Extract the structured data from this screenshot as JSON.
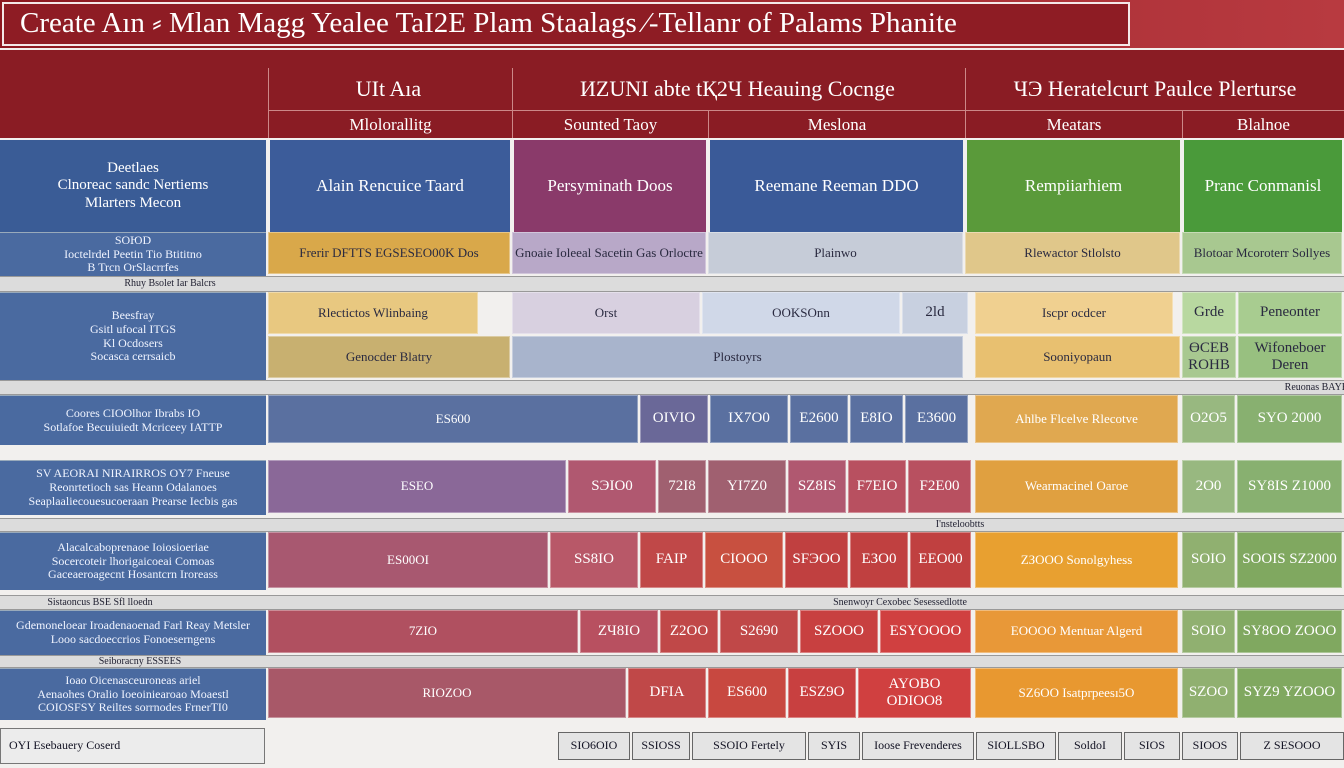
{
  "title": "Create Aın ⸗ Mlan Magg Yealee TaI2E Plam Staalags ⁄-Tellanr of Palams Phanite",
  "header": {
    "group_row": [
      "UIt Aıa",
      "ИZUNI abte tҚ2Ч Heauing Cocnge",
      "ЧЭ Heratelcuгt Paulce Plerturse"
    ],
    "sub_row": [
      "Mlolorallitg",
      "Sounted Taoy",
      "Meslona",
      "Meatars",
      "Blalnoe"
    ]
  },
  "categories": {
    "left": [
      "Deetlaes",
      "Clnoreac sandc Nertiems",
      "Mlarters Mecon"
    ],
    "columns": [
      "Alain Rencuice Taard",
      "Persyminath Doos",
      "Reemane Reeman DDO",
      "Rempiiarhiem",
      "Pranc Conmanisl"
    ]
  },
  "rows": [
    {
      "label": [
        "ЅOЮD",
        "Ioctelrdel Peetin Tio Btititno",
        "B Trcn OrSlacrrfes"
      ],
      "cells": [
        "Frerir DFTTS EGSESEO00K Dos",
        "Gnoaie Ioleeal Sacetin Gas Orloctre",
        "Plainwo",
        "Rlewactor Stlolsto",
        "Blotoar Mcoroterr Sollyes"
      ]
    },
    {
      "label": [
        "Beesfray",
        "Gsitl ufocal ITGS",
        "Kl Ocdosers",
        "Socasca cerrsaicb"
      ],
      "cells": [
        "Rlectictos Wlinbaing",
        "Orst",
        "OOKSOnn",
        "2ld",
        "Iscpr ocdcer",
        "Grde",
        "Peneonter",
        "Genocder Blatry",
        "Plostoyrs",
        "Sooniyopaun",
        "ӨCEB ROHB",
        "Wifoneboer Deren"
      ]
    },
    {
      "label": [
        "Coores CIOOlhor Ibrabs IO",
        "Sotlafoe Becuiuiedt Mcriceey IATTP"
      ],
      "cells": [
        "ES600",
        "OIVIO",
        "IX7O0",
        "E2600",
        "E8IO",
        "E3600",
        "Ahlbe Flcelve Rlecotve",
        "O2O5",
        "SYO 2000"
      ]
    },
    {
      "label": [
        "SV AEORAI NIRAIRROS OY7 Fneuse",
        "Reonrtetioch sas Heann Odalanoes",
        "Seaplaaliecouesucoeraan Prearse Iecbis gas"
      ],
      "cells": [
        "ESEO",
        "SЭIO0",
        "72I8",
        "YI7Z0",
        "SZ8IS",
        "F7EIO",
        "F2E00",
        "Wearmacinel Oaroe",
        "2O0",
        "SY8IS Z1000"
      ]
    },
    {
      "label": [
        "Alacalcaboprenaoe Ioiosioeriae",
        "Socercoteir lhorigaicoeai Comoas",
        "Gaceaeroagecnt Hosantcrn Iroreass"
      ],
      "cells": [
        "ES00OI",
        "SS8IO",
        "FAIP",
        "CIOOO",
        "SFЭOO",
        "EЗO0",
        "EEO00",
        "ZЗOOO Sonolgyhess",
        "SOIO",
        "SOOIS SZ2000"
      ]
    },
    {
      "label": [
        "Gdemoneloear Iroadenaoenad Farl Reay Metsler",
        "Looo sacdoeccrios Fonoeserngens"
      ],
      "cells": [
        "7ZIO",
        "ZЧ8IO",
        "Z2OO",
        "S2690",
        "SZOOO",
        "ESYOOOO",
        "ЕOOOO Mentuar Algerd",
        "SOIO",
        "SY8OO ZOOO"
      ]
    },
    {
      "label": [
        "Ioao Oicenasceuroneas ariel",
        "Aenaohes Oralio Ioeoiniearoao Moaestl",
        "COIOSFSY Reiltes sorrnodes FrnerTI0"
      ],
      "cells": [
        "RIOZOO",
        "DFIA",
        "ES600",
        "ESZ9O",
        "AYOBO ODIOO8",
        "SZ6OO Isatprpeesı5O",
        "SZOO",
        "SYZ9 YZOOO"
      ]
    }
  ],
  "separators": [
    [
      "Rhuy Bsolet Iar Balcrs"
    ],
    [
      "Reuonas BAYBE SEЭ"
    ],
    [
      "I'nsteloobtts"
    ],
    [
      "Sistaoncus BSE Sfl lloedn",
      "Snenwoyr Cexobec Sesessedlotte"
    ],
    [
      "Seiboracny ESSEES"
    ]
  ],
  "footer": {
    "label": "OYI Esebauery Coserd",
    "cells": [
      "SIO6OIO",
      "SSIOSS",
      "SSOIO Fertely",
      "SYIS",
      "Ioose Frevenderes",
      "SIOLLSBO",
      "SoldoI",
      "SIOS",
      "SIOOS",
      "Z SESOOO"
    ]
  }
}
